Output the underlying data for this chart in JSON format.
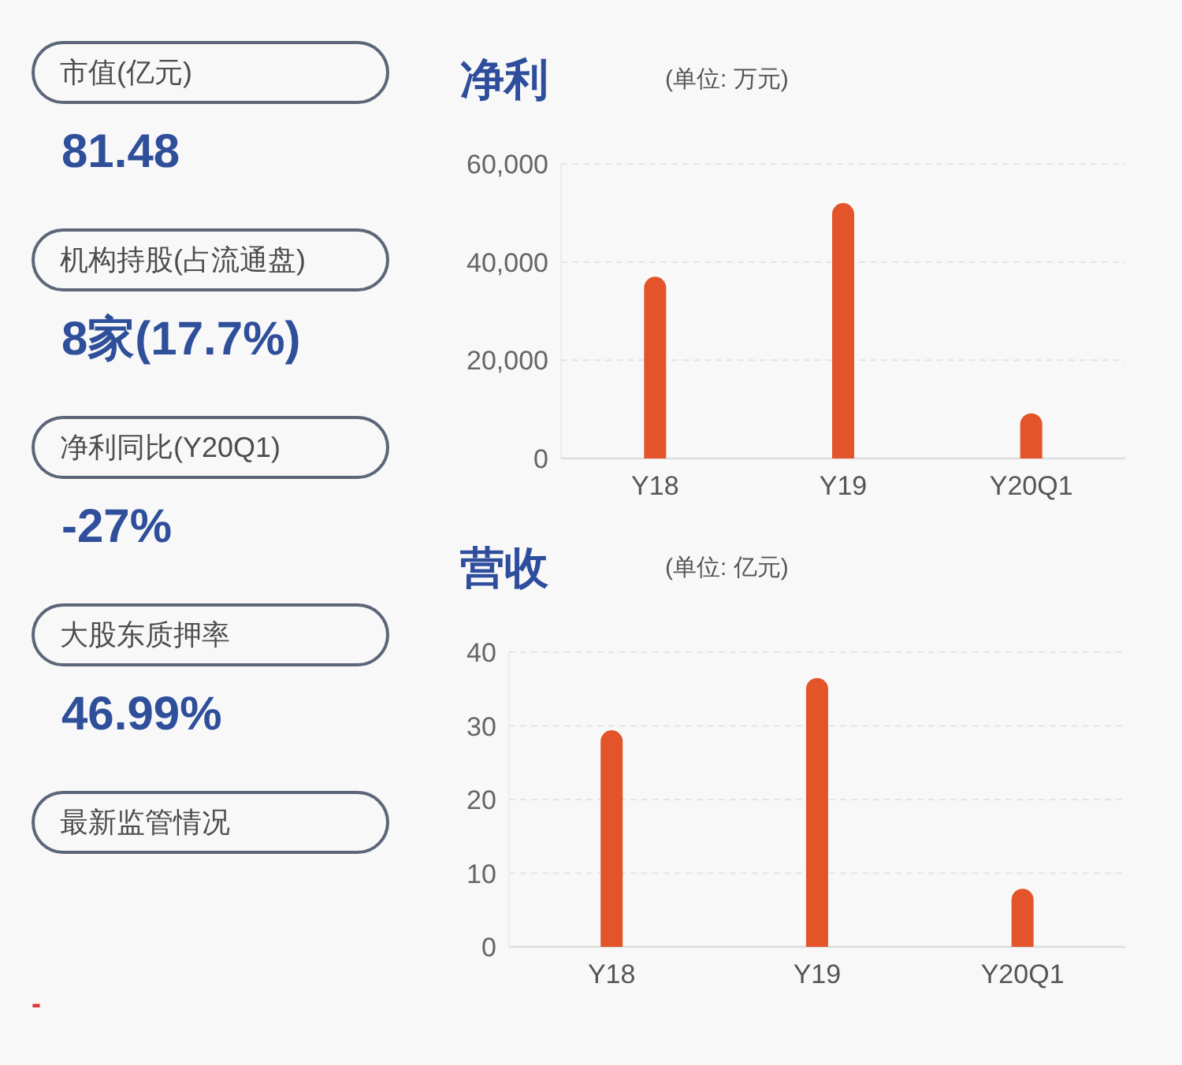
{
  "chart_data": [
    {
      "type": "other",
      "categories": [
        "市值(亿元)",
        "机构持股(占流通盘)",
        "净利同比(Y20Q1)",
        "大股东质押率",
        "最新监管情况"
      ],
      "value_labels": [
        "81.48",
        "8家(17.7%)",
        "-27%",
        "46.99%",
        null
      ],
      "annotations": [
        "-"
      ]
    },
    {
      "type": "bar",
      "title": "净利",
      "subtitle": "(单位: 万元)",
      "categories": [
        "Y18",
        "Y19",
        "Y20Q1"
      ],
      "values": [
        37000,
        52000,
        9200
      ],
      "color": "#e4542b",
      "ylim": [
        0,
        60000
      ],
      "yticks": [
        0,
        {
          "value": 20000,
          "label": "20,000"
        },
        {
          "value": 40000,
          "label": "40,000"
        },
        {
          "value": 60000,
          "label": "60,000"
        }
      ],
      "grid": "y"
    },
    {
      "type": "bar",
      "title": "营收",
      "subtitle": "(单位: 亿元)",
      "categories": [
        "Y18",
        "Y19",
        "Y20Q1"
      ],
      "values": [
        29.4,
        36.5,
        7.9
      ],
      "color": "#e4542b",
      "ylim": [
        0,
        40
      ],
      "yticks": [
        0,
        10,
        20,
        30,
        40
      ],
      "grid": "y"
    }
  ]
}
